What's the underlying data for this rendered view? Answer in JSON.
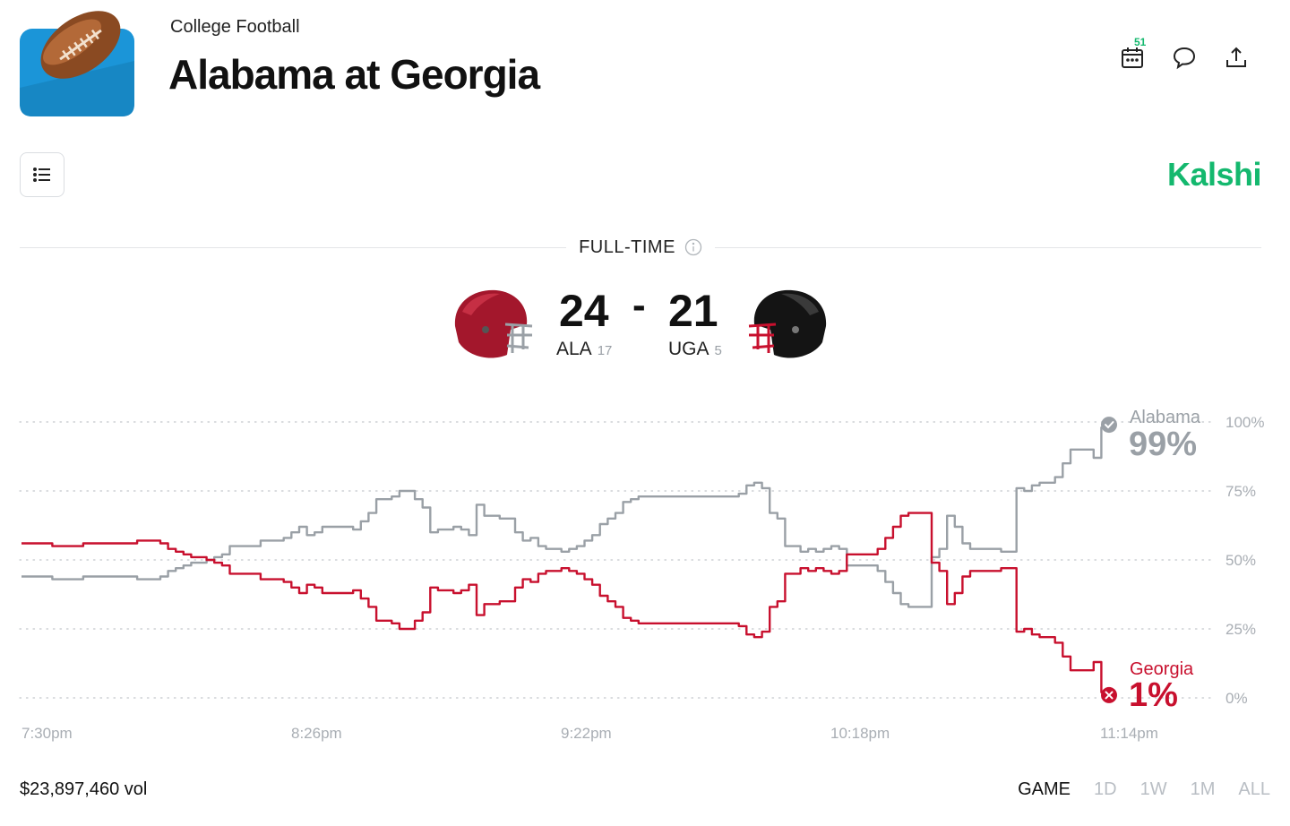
{
  "header": {
    "category": "College Football",
    "title": "Alabama at Georgia",
    "calendar_badge": "51"
  },
  "brand": {
    "name": "Kalshi",
    "color": "#14b86e"
  },
  "game": {
    "status": "FULL-TIME",
    "home_score": "24",
    "separator": "-",
    "away_score": "21",
    "team_a": {
      "abbr": "ALA",
      "rank": "17",
      "color": "#b5122e"
    },
    "team_b": {
      "abbr": "UGA",
      "rank": "5",
      "color": "#111111"
    }
  },
  "chart_data": {
    "type": "line",
    "x_ticks": [
      "7:30pm",
      "8:26pm",
      "9:22pm",
      "10:18pm",
      "11:14pm"
    ],
    "y_ticks": [
      "100%",
      "75%",
      "50%",
      "25%",
      "0%"
    ],
    "ylim": [
      0,
      100
    ],
    "grid": true,
    "series": [
      {
        "name": "Alabama",
        "color": "#9aa0a6",
        "final_label": "99%",
        "result": "win",
        "values": [
          44,
          44,
          44,
          44,
          43,
          43,
          43,
          43,
          44,
          44,
          44,
          44,
          44,
          44,
          44,
          43,
          43,
          43,
          44,
          46,
          47,
          48,
          49,
          49,
          50,
          51,
          52,
          55,
          55,
          55,
          55,
          57,
          57,
          57,
          58,
          60,
          62,
          59,
          60,
          62,
          62,
          62,
          62,
          61,
          64,
          67,
          72,
          72,
          73,
          75,
          75,
          72,
          69,
          60,
          61,
          61,
          62,
          61,
          59,
          70,
          66,
          66,
          65,
          65,
          60,
          57,
          58,
          55,
          54,
          54,
          53,
          54,
          55,
          57,
          59,
          63,
          65,
          67,
          71,
          72,
          73,
          73,
          73,
          73,
          73,
          73,
          73,
          73,
          73,
          73,
          73,
          73,
          73,
          74,
          77,
          78,
          76,
          67,
          65,
          55,
          55,
          53,
          54,
          53,
          54,
          55,
          54,
          48,
          48,
          48,
          48,
          46,
          42,
          38,
          34,
          33,
          33,
          33,
          51,
          54,
          66,
          62,
          56,
          54,
          54,
          54,
          54,
          53,
          53,
          76,
          75,
          77,
          78,
          78,
          80,
          85,
          90,
          90,
          90,
          87,
          98,
          99
        ]
      },
      {
        "name": "Georgia",
        "color": "#c8102e",
        "final_label": "1%",
        "result": "loss",
        "values": [
          56,
          56,
          56,
          56,
          55,
          55,
          55,
          55,
          56,
          56,
          56,
          56,
          56,
          56,
          56,
          57,
          57,
          57,
          56,
          54,
          53,
          52,
          51,
          51,
          50,
          49,
          48,
          45,
          45,
          45,
          45,
          43,
          43,
          43,
          42,
          40,
          38,
          41,
          40,
          38,
          38,
          38,
          38,
          39,
          36,
          33,
          28,
          28,
          27,
          25,
          25,
          28,
          31,
          40,
          39,
          39,
          38,
          39,
          41,
          30,
          34,
          34,
          35,
          35,
          40,
          43,
          42,
          45,
          46,
          46,
          47,
          46,
          45,
          43,
          41,
          37,
          35,
          33,
          29,
          28,
          27,
          27,
          27,
          27,
          27,
          27,
          27,
          27,
          27,
          27,
          27,
          27,
          27,
          26,
          23,
          22,
          24,
          33,
          35,
          45,
          45,
          47,
          46,
          47,
          46,
          45,
          46,
          52,
          52,
          52,
          52,
          54,
          58,
          62,
          66,
          67,
          67,
          67,
          49,
          46,
          34,
          38,
          44,
          46,
          46,
          46,
          46,
          47,
          47,
          24,
          25,
          23,
          22,
          22,
          20,
          15,
          10,
          10,
          10,
          13,
          2,
          1
        ]
      }
    ]
  },
  "footer": {
    "volume": "$23,897,460 vol",
    "ranges": [
      "GAME",
      "1D",
      "1W",
      "1M",
      "ALL"
    ],
    "active_range": "GAME"
  }
}
